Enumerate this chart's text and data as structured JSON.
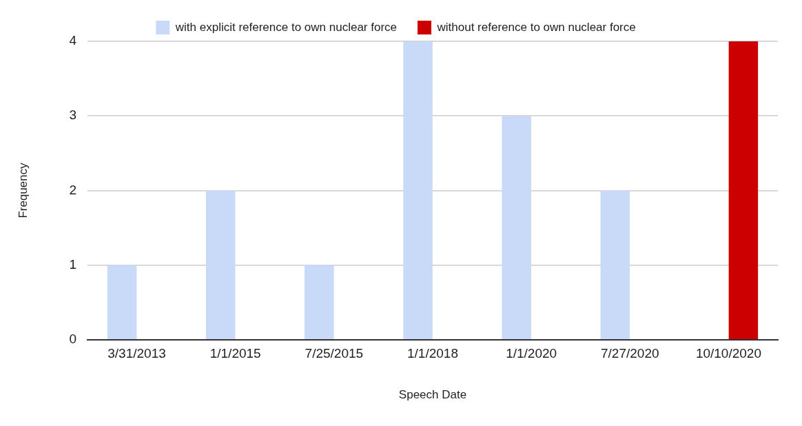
{
  "chart_data": {
    "type": "bar",
    "xlabel": "Speech Date",
    "ylabel": "Frequency",
    "categories": [
      "3/31/2013",
      "1/1/2015",
      "7/25/2015",
      "1/1/2018",
      "1/1/2020",
      "7/27/2020",
      "10/10/2020"
    ],
    "series": [
      {
        "name": "with explicit reference to own nuclear force",
        "color": "#c9daf8",
        "values": [
          1,
          2,
          1,
          4,
          3,
          2,
          null
        ]
      },
      {
        "name": "without reference to own nuclear force",
        "color": "#cc0000",
        "values": [
          null,
          null,
          null,
          null,
          null,
          null,
          4
        ]
      }
    ],
    "ylim": [
      0,
      4
    ],
    "yticks": [
      0,
      1,
      2,
      3,
      4
    ],
    "grid": "y",
    "legend": "top"
  }
}
